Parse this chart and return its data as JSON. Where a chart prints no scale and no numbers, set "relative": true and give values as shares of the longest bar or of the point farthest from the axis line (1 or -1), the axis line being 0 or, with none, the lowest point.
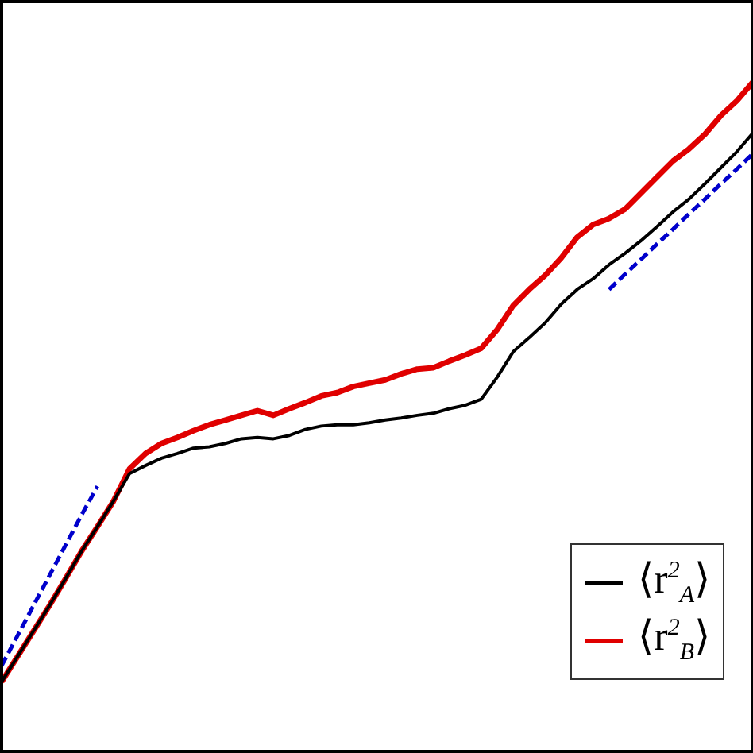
{
  "chart_data": {
    "type": "line",
    "relative": true,
    "legend": "bottom right",
    "grid": false,
    "marker": "none",
    "categories": [
      null,
      null,
      null,
      null,
      null,
      null,
      null,
      null,
      null,
      null,
      null,
      null,
      null,
      null,
      null,
      null,
      null,
      null,
      null,
      null,
      null,
      null,
      null,
      null,
      null,
      null,
      null,
      null,
      null,
      null,
      null,
      null,
      null,
      null,
      null,
      null,
      null,
      null,
      null,
      null,
      null,
      null,
      null,
      null,
      null,
      null,
      null,
      null
    ],
    "series": [
      {
        "name": "⟨r$^{2}$$_{A}$⟩",
        "color": "#000000",
        "line_style": "solid",
        "values": [
          0.104,
          0.142,
          0.18,
          0.218,
          0.258,
          0.299,
          0.336,
          0.374,
          0.415,
          0.427,
          0.438,
          0.445,
          0.453,
          0.455,
          0.46,
          0.467,
          0.469,
          0.467,
          0.472,
          0.481,
          0.486,
          0.488,
          0.488,
          0.491,
          0.495,
          0.498,
          0.502,
          0.505,
          0.512,
          0.517,
          0.526,
          0.559,
          0.597,
          0.618,
          0.64,
          0.668,
          0.69,
          0.706,
          0.727,
          0.744,
          0.763,
          0.784,
          0.806,
          0.825,
          0.848,
          0.872,
          0.896,
          0.924
        ]
      },
      {
        "name": "⟨r$^{2}$$_{B}$⟩",
        "color": "#e00000",
        "line_style": "solid",
        "values": [
          0.104,
          0.142,
          0.18,
          0.218,
          0.258,
          0.299,
          0.336,
          0.374,
          0.422,
          0.445,
          0.46,
          0.469,
          0.479,
          0.488,
          0.495,
          0.502,
          0.509,
          0.502,
          0.512,
          0.521,
          0.531,
          0.536,
          0.545,
          0.55,
          0.555,
          0.564,
          0.571,
          0.573,
          0.583,
          0.592,
          0.602,
          0.63,
          0.666,
          0.69,
          0.711,
          0.737,
          0.768,
          0.787,
          0.796,
          0.81,
          0.834,
          0.858,
          0.882,
          0.9,
          0.922,
          0.95,
          0.972,
          1
        ]
      },
      {
        "color": "#0000cc",
        "line_style": "dashed",
        "values": [
          0.128,
          0.173,
          0.218,
          0.263,
          0.308,
          0.353,
          0.396,
          null,
          null,
          null,
          null,
          null,
          null,
          null,
          null,
          null,
          null,
          null,
          null,
          null,
          null,
          null,
          null,
          null,
          null,
          null,
          null,
          null,
          null,
          null,
          null,
          null,
          null,
          null,
          null,
          null,
          null,
          null,
          null,
          null,
          null,
          null,
          null,
          null,
          null,
          null,
          null,
          null
        ]
      },
      {
        "color": "#0000cc",
        "line_style": "dashed",
        "values": [
          null,
          null,
          null,
          null,
          null,
          null,
          null,
          null,
          null,
          null,
          null,
          null,
          null,
          null,
          null,
          null,
          null,
          null,
          null,
          null,
          null,
          null,
          null,
          null,
          null,
          null,
          null,
          null,
          null,
          null,
          null,
          null,
          null,
          null,
          null,
          null,
          null,
          null,
          0.69,
          0.713,
          0.735,
          0.758,
          0.78,
          0.803,
          0.825,
          0.848,
          0.87,
          0.893
        ]
      }
    ]
  }
}
